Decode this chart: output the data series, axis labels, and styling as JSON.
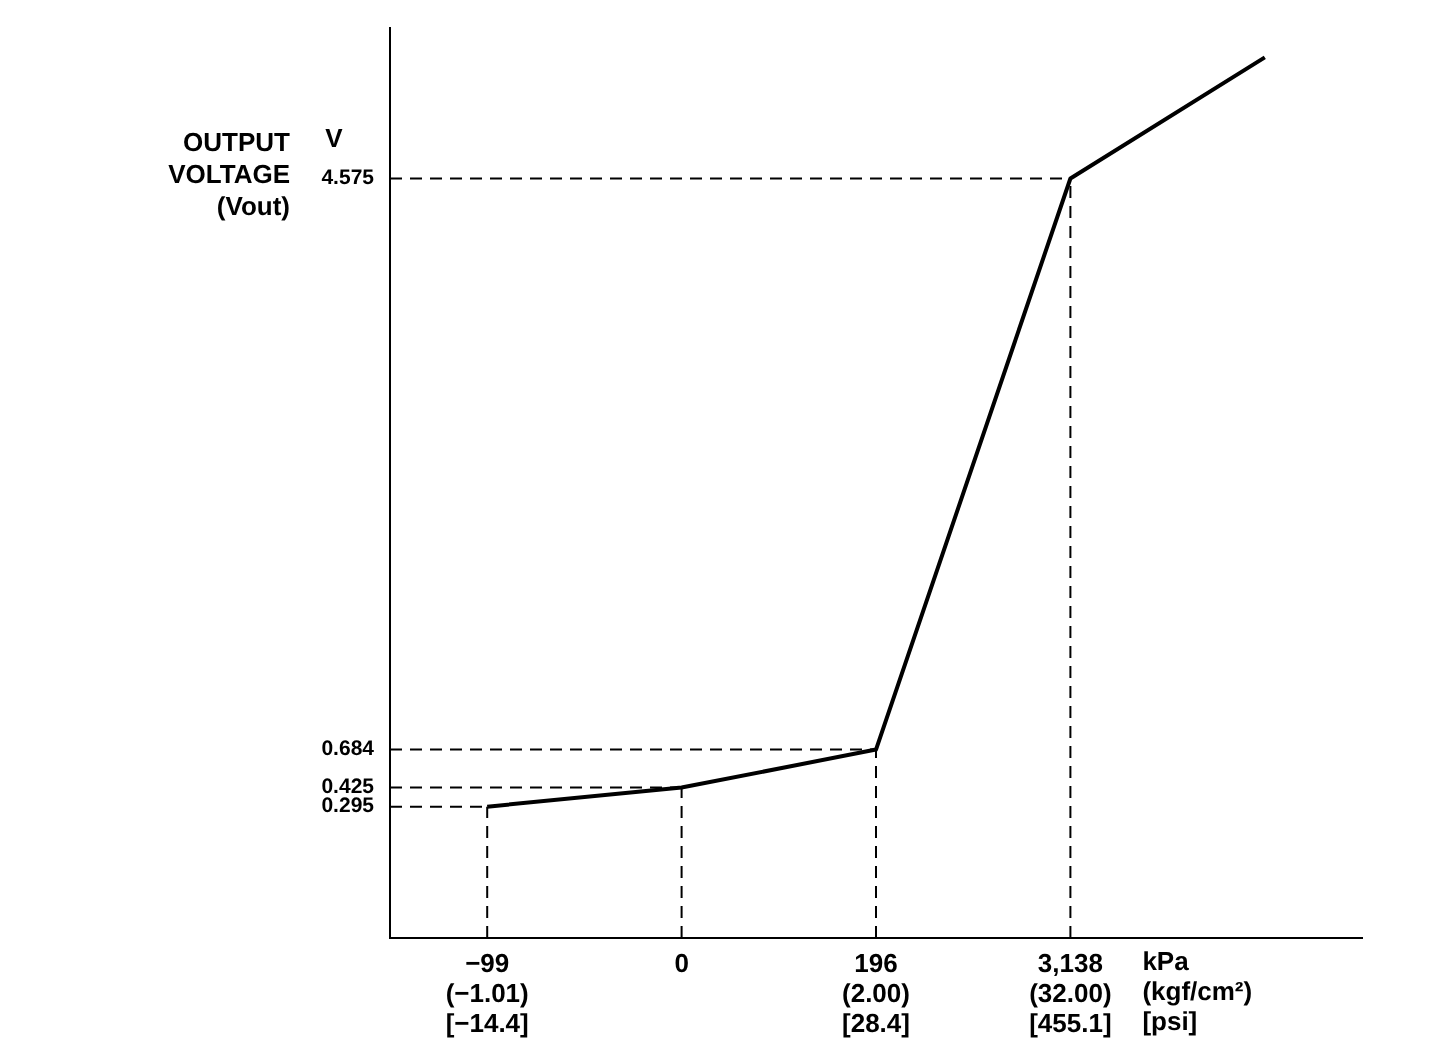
{
  "chart_data": {
    "type": "line",
    "ylabel": "OUTPUT\nVOLTAGE\n(Vout)",
    "xlabel": "kPa\n(kgf/cm²)\n[psi]",
    "annotations": [
      "V"
    ],
    "categories": [
      "−99\n(−1.01)\n[−14.4]",
      "0",
      "196\n(2.00)\n[28.4]",
      "3,138\n(32.00)\n[455.1]",
      null
    ],
    "series": [
      {
        "color": "#000000",
        "values": [
          0.295,
          0.425,
          0.684,
          4.575,
          5.4
        ]
      }
    ],
    "ylim": [
      -0.6,
      5.6
    ],
    "yticks": [
      0.295,
      0.425,
      0.684,
      4.575
    ],
    "ref_lines": [
      {
        "axis": "x",
        "value": "−99\n(−1.01)\n[−14.4]",
        "line_style": "dashed"
      },
      {
        "axis": "x",
        "value": "0",
        "line_style": "dashed"
      },
      {
        "axis": "x",
        "value": "196\n(2.00)\n[28.4]",
        "line_style": "dashed"
      },
      {
        "axis": "x",
        "value": "3,138\n(32.00)\n[455.1]",
        "line_style": "dashed"
      },
      {
        "axis": "y",
        "value": 0.295,
        "line_style": "dashed"
      },
      {
        "axis": "y",
        "value": 0.425,
        "line_style": "dashed"
      },
      {
        "axis": "y",
        "value": 0.684,
        "line_style": "dashed"
      },
      {
        "axis": "y",
        "value": 4.575,
        "line_style": "dashed"
      }
    ],
    "grid": false,
    "legend": false,
    "marker": "none",
    "line_style": "solid"
  }
}
